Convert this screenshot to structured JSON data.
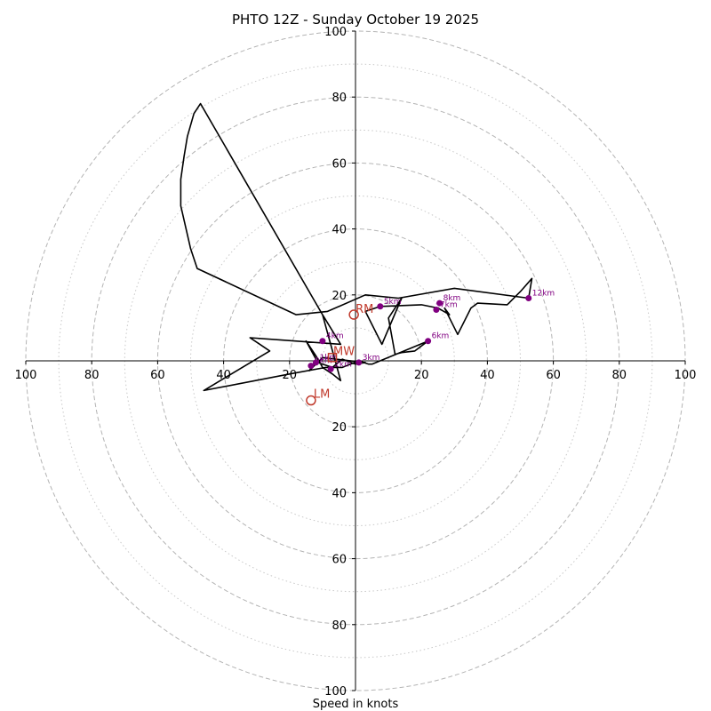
{
  "chart_data": {
    "type": "hodograph",
    "title": "PHTO 12Z - Sunday October 19 2025",
    "xlabel": "Speed in knots",
    "units": "knots",
    "range": [
      -100,
      100
    ],
    "major_rings": [
      20,
      40,
      60,
      80,
      100
    ],
    "minor_rings": [
      10,
      30,
      50,
      70,
      90
    ],
    "tick_labels": {
      "x": [
        "100",
        "80",
        "60",
        "40",
        "20",
        "20",
        "40",
        "60",
        "80",
        "100"
      ],
      "y": [
        "100",
        "80",
        "60",
        "40",
        "20",
        "20",
        "40",
        "60",
        "80",
        "100"
      ]
    },
    "trace": [
      [
        -13.5,
        -1.5
      ],
      [
        -11.5,
        -0.5
      ],
      [
        -7,
        -2
      ],
      [
        -4,
        0.5
      ],
      [
        0,
        -1
      ],
      [
        3,
        -0.5
      ],
      [
        -10,
        1
      ],
      [
        -14,
        -3
      ],
      [
        -12,
        0.5
      ],
      [
        -15,
        6
      ],
      [
        -12,
        1.5
      ],
      [
        -10,
        -2
      ],
      [
        -7,
        -4
      ],
      [
        -4.5,
        -6
      ],
      [
        -10,
        14
      ],
      [
        -4.5,
        5
      ],
      [
        -32,
        7
      ],
      [
        -29,
        5
      ],
      [
        -26,
        3
      ],
      [
        -46,
        -9
      ],
      [
        -20,
        -4
      ],
      [
        -9,
        -2
      ],
      [
        -4,
        -2
      ],
      [
        1,
        0
      ],
      [
        4,
        -1
      ],
      [
        5,
        -1
      ],
      [
        22,
        6
      ],
      [
        18,
        3
      ],
      [
        14,
        2.5
      ],
      [
        12,
        2
      ],
      [
        10,
        13
      ],
      [
        14,
        19
      ],
      [
        8,
        5
      ],
      [
        6,
        9
      ],
      [
        3,
        15
      ],
      [
        7.5,
        16.5
      ],
      [
        20,
        17
      ],
      [
        25,
        16
      ],
      [
        28.5,
        14
      ],
      [
        27,
        16
      ],
      [
        31,
        8
      ],
      [
        35,
        16
      ],
      [
        37,
        17.5
      ],
      [
        46,
        17
      ],
      [
        50,
        21
      ],
      [
        53.5,
        25
      ],
      [
        52.5,
        19
      ],
      [
        30,
        22
      ],
      [
        13,
        19
      ],
      [
        3,
        20
      ],
      [
        -8.5,
        15
      ],
      [
        -18,
        14
      ],
      [
        -48,
        28
      ],
      [
        -50,
        34
      ],
      [
        -53,
        47
      ],
      [
        -53,
        55
      ],
      [
        -52,
        62
      ],
      [
        -51,
        68
      ],
      [
        -49,
        75
      ],
      [
        -47,
        78
      ],
      [
        -10,
        14
      ]
    ],
    "height_markers": [
      {
        "label": "0km",
        "u": -13.5,
        "v": -1.5
      },
      {
        "label": "1km",
        "u": -12,
        "v": -0.5
      },
      {
        "label": "2km",
        "u": -7.5,
        "v": -2.5
      },
      {
        "label": "3km",
        "u": 1,
        "v": -0.5
      },
      {
        "label": "4km",
        "u": -10,
        "v": 6
      },
      {
        "label": "5km",
        "u": 7.5,
        "v": 16.5
      },
      {
        "label": "6km",
        "u": 22,
        "v": 6
      },
      {
        "label": "7km",
        "u": 24.5,
        "v": 15.5
      },
      {
        "label": "8km",
        "u": 25.5,
        "v": 17.5
      },
      {
        "label": "12km",
        "u": 52.5,
        "v": 19
      }
    ],
    "storm_motion": {
      "RM": {
        "label": "RM",
        "u": -0.5,
        "v": 14
      },
      "LM": {
        "label": "LM",
        "u": -13.5,
        "v": -12
      },
      "MW": {
        "label": "MW",
        "u": -7,
        "v": 1
      }
    },
    "colors": {
      "trace": "#000000",
      "markers": "#800080",
      "storm_motion": "#c0392b",
      "rings": "#b4b4b4"
    }
  }
}
